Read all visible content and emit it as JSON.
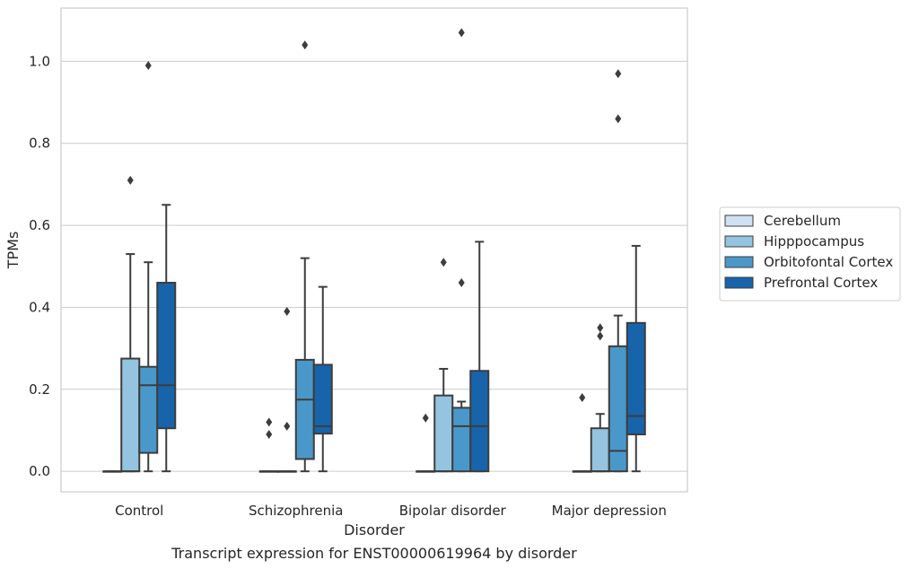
{
  "caption": "Transcript expression for ENST00000619964 by disorder",
  "chart_data": {
    "type": "box",
    "title": "",
    "xlabel": "Disorder",
    "ylabel": "TPMs",
    "ylim": [
      -0.05,
      1.13
    ],
    "yticks": [
      0.0,
      0.2,
      0.4,
      0.6,
      0.8,
      1.0
    ],
    "ytick_labels": [
      "0.0",
      "0.2",
      "0.4",
      "0.6",
      "0.8",
      "1.0"
    ],
    "grid": "horizontal",
    "legend_position": "right",
    "categories": [
      "Control",
      "Schizophrenia",
      "Bipolar disorder",
      "Major depression"
    ],
    "series": [
      {
        "name": "Cerebellum",
        "color": "#d0e1f2",
        "boxes": [
          {
            "q1": 0,
            "median": 0,
            "q3": 0,
            "whislo": 0,
            "whishi": 0,
            "fliers": []
          },
          {
            "q1": 0,
            "median": 0,
            "q3": 0,
            "whislo": 0,
            "whishi": 0,
            "fliers": [
              0.12,
              0.09
            ]
          },
          {
            "q1": 0,
            "median": 0,
            "q3": 0,
            "whislo": 0,
            "whishi": 0,
            "fliers": [
              0.13
            ]
          },
          {
            "q1": 0,
            "median": 0,
            "q3": 0,
            "whislo": 0,
            "whishi": 0,
            "fliers": [
              0.18
            ]
          }
        ]
      },
      {
        "name": "Hipppocampus",
        "color": "#94c4df",
        "boxes": [
          {
            "q1": 0,
            "median": 0,
            "q3": 0.275,
            "whislo": 0,
            "whishi": 0.53,
            "fliers": [
              0.71
            ]
          },
          {
            "q1": 0,
            "median": 0,
            "q3": 0,
            "whislo": 0,
            "whishi": 0,
            "fliers": [
              0.11,
              0.39
            ]
          },
          {
            "q1": 0,
            "median": 0,
            "q3": 0.185,
            "whislo": 0,
            "whishi": 0.25,
            "fliers": [
              0.51
            ]
          },
          {
            "q1": 0,
            "median": 0,
            "q3": 0.105,
            "whislo": 0,
            "whishi": 0.14,
            "fliers": [
              0.33,
              0.35
            ]
          }
        ]
      },
      {
        "name": "Orbitofontal Cortex",
        "color": "#4a98c9",
        "boxes": [
          {
            "q1": 0.045,
            "median": 0.21,
            "q3": 0.255,
            "whislo": 0,
            "whishi": 0.51,
            "fliers": [
              0.99
            ]
          },
          {
            "q1": 0.03,
            "median": 0.175,
            "q3": 0.272,
            "whislo": 0,
            "whishi": 0.52,
            "fliers": [
              1.04
            ]
          },
          {
            "q1": 0,
            "median": 0.11,
            "q3": 0.155,
            "whislo": 0,
            "whishi": 0.17,
            "fliers": [
              0.46,
              1.07
            ]
          },
          {
            "q1": 0,
            "median": 0.05,
            "q3": 0.305,
            "whislo": 0,
            "whishi": 0.38,
            "fliers": [
              0.86,
              0.97
            ]
          }
        ]
      },
      {
        "name": "Prefrontal Cortex",
        "color": "#1764ab",
        "boxes": [
          {
            "q1": 0.105,
            "median": 0.21,
            "q3": 0.46,
            "whislo": 0,
            "whishi": 0.65,
            "fliers": []
          },
          {
            "q1": 0.092,
            "median": 0.11,
            "q3": 0.26,
            "whislo": 0,
            "whishi": 0.45,
            "fliers": []
          },
          {
            "q1": 0,
            "median": 0.11,
            "q3": 0.245,
            "whislo": 0,
            "whishi": 0.56,
            "fliers": []
          },
          {
            "q1": 0.09,
            "median": 0.135,
            "q3": 0.362,
            "whislo": 0,
            "whishi": 0.55,
            "fliers": []
          }
        ]
      }
    ]
  }
}
